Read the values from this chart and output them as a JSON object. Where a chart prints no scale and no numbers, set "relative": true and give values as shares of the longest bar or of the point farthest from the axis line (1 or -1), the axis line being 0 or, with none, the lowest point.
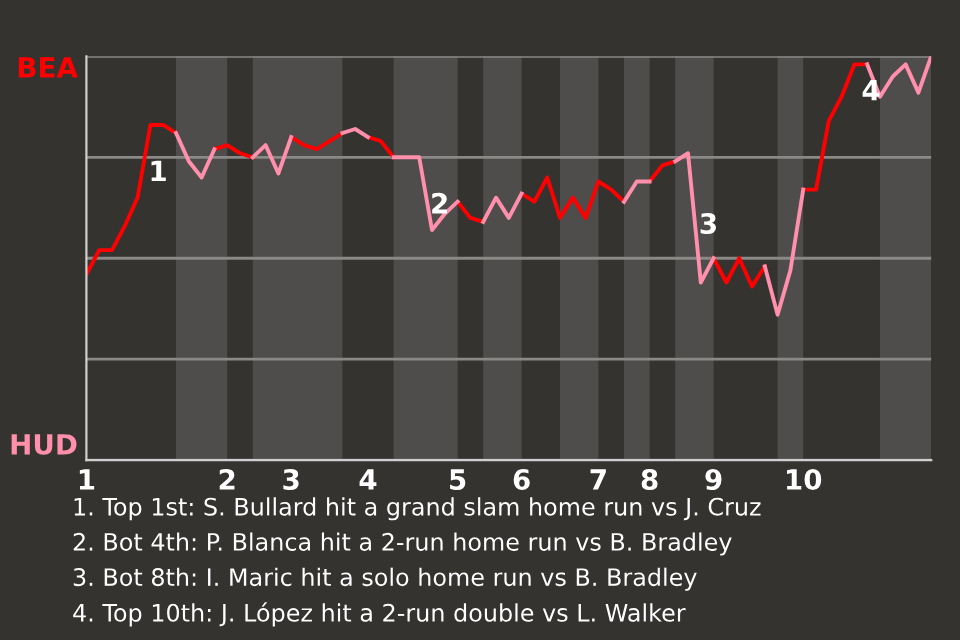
{
  "chart_data": {
    "type": "line",
    "relative": true,
    "categories": [
      "1",
      null,
      null,
      null,
      null,
      null,
      null,
      null,
      null,
      null,
      null,
      "2",
      null,
      null,
      null,
      null,
      "3",
      null,
      null,
      null,
      null,
      null,
      "4",
      null,
      null,
      null,
      null,
      null,
      null,
      "5",
      null,
      null,
      null,
      null,
      "6",
      null,
      null,
      null,
      null,
      null,
      "7",
      null,
      null,
      null,
      "8",
      null,
      null,
      null,
      null,
      "9",
      null,
      null,
      null,
      null,
      null,
      null,
      "10",
      null,
      null,
      null,
      null,
      null,
      null,
      null,
      null,
      null,
      null
    ],
    "series": [
      {
        "name": "BEA",
        "color": "#ff0000",
        "values": [
          0.46,
          0.52,
          0.52,
          0.58,
          0.65,
          0.83,
          0.83,
          0.81,
          null,
          null,
          0.77,
          0.78,
          0.76,
          0.75,
          null,
          null,
          0.8,
          0.78,
          0.77,
          0.79,
          0.81,
          null,
          0.8,
          0.79,
          0.75,
          null,
          null,
          null,
          null,
          0.64,
          0.6,
          0.59,
          null,
          null,
          0.66,
          0.64,
          0.7,
          0.6,
          0.65,
          0.6,
          0.69,
          0.67,
          0.64,
          null,
          0.69,
          0.73,
          0.74,
          null,
          null,
          0.5,
          0.44,
          0.5,
          0.43,
          0.48,
          null,
          null,
          0.67,
          0.67,
          0.84,
          0.9,
          0.98,
          0.98,
          null,
          null,
          null,
          null,
          null
        ]
      },
      {
        "name": "HUD",
        "color": "#ff8fab",
        "values": [
          null,
          null,
          null,
          null,
          null,
          null,
          null,
          0.81,
          0.74,
          0.7,
          0.77,
          null,
          null,
          0.75,
          0.78,
          0.71,
          0.8,
          null,
          null,
          null,
          0.81,
          0.82,
          0.8,
          null,
          0.75,
          0.75,
          0.75,
          0.57,
          0.61,
          0.64,
          null,
          0.59,
          0.65,
          0.6,
          0.66,
          null,
          null,
          null,
          null,
          null,
          null,
          null,
          0.64,
          0.69,
          0.69,
          null,
          0.74,
          0.76,
          0.44,
          0.5,
          null,
          null,
          null,
          0.48,
          0.36,
          0.47,
          0.67,
          null,
          null,
          null,
          null,
          0.98,
          0.9,
          0.95,
          0.98,
          0.91,
          1.0
        ]
      }
    ],
    "grid": "y",
    "legend": false,
    "line_style": "solid",
    "marker": "none",
    "annotations": [
      {
        "text": "1"
      },
      {
        "text": "2"
      },
      {
        "text": "3"
      },
      {
        "text": "4"
      },
      "1. Top 1st: S. Bullard hit a grand slam home run vs J. Cruz",
      "2. Bot 4th: P. Blanca hit a 2-run home run vs B. Bradley",
      "3. Bot 8th: I. Maric hit a solo home run vs B. Bradley",
      "4. Top 10th: J. López hit a 2-run double vs L. Walker"
    ]
  }
}
